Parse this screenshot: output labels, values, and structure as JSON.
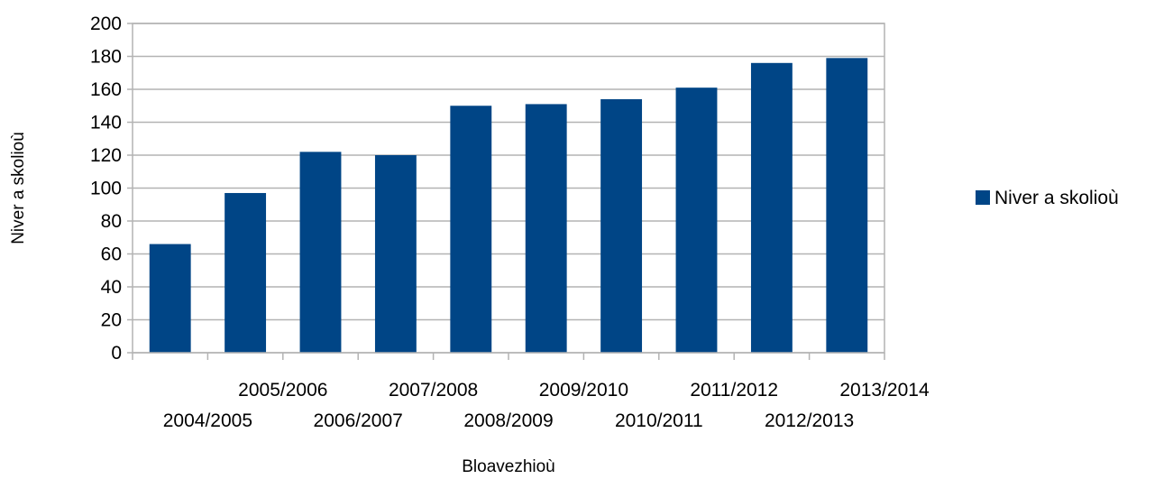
{
  "chart_data": {
    "type": "bar",
    "title": "",
    "xlabel": "Bloavezhioù",
    "ylabel": "Niver a skolioù",
    "categories": [
      "2004/2005",
      "2005/2006",
      "2006/2007",
      "2007/2008",
      "2008/2009",
      "2009/2010",
      "2010/2011",
      "2011/2012",
      "2012/2013",
      "2013/2014"
    ],
    "series": [
      {
        "name": "Niver a skolioù",
        "color": "#004586",
        "values": [
          66,
          97,
          122,
          120,
          150,
          151,
          154,
          161,
          176,
          179
        ]
      }
    ],
    "ylim": [
      0,
      200
    ],
    "yticks": [
      0,
      20,
      40,
      60,
      80,
      100,
      120,
      140,
      160,
      180,
      200
    ],
    "grid": true,
    "legend_position": "right",
    "x_label_layout": "staggered"
  }
}
